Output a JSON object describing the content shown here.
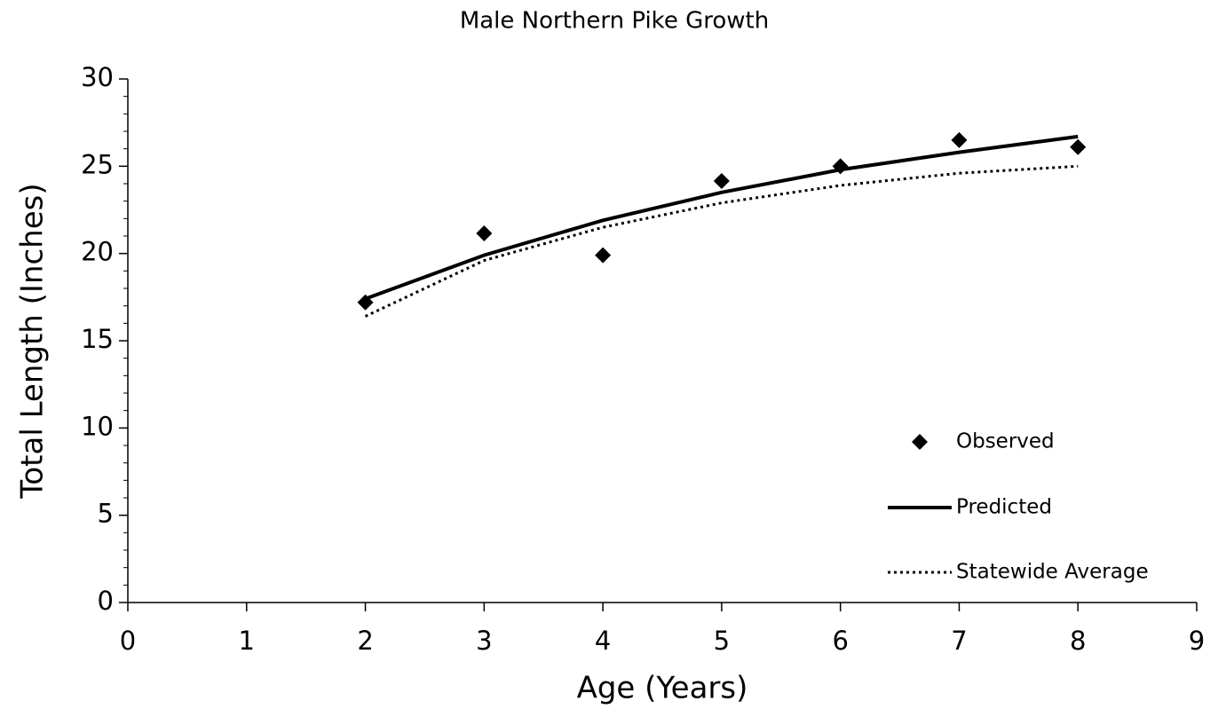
{
  "chart_data": {
    "type": "line",
    "title": "Male Northern Pike Growth",
    "x_label": "Age (Years)",
    "y_label": "Total Length (Inches)",
    "x": [
      2,
      3,
      4,
      5,
      6,
      7,
      8
    ],
    "series": [
      {
        "name": "Observed",
        "style": "marker",
        "color": "#000000",
        "values": [
          17.2,
          21.15,
          19.9,
          24.15,
          25.0,
          26.5,
          26.1
        ]
      },
      {
        "name": "Predicted",
        "style": "solid",
        "color": "#000000",
        "values": [
          17.4,
          19.9,
          21.9,
          23.5,
          24.8,
          25.8,
          26.7
        ]
      },
      {
        "name": "Statewide Average",
        "style": "dotted",
        "color": "#000000",
        "values": [
          16.4,
          19.6,
          21.5,
          22.9,
          23.9,
          24.6,
          25.0
        ]
      }
    ],
    "xlim": [
      0,
      9
    ],
    "xticks": [
      0,
      1,
      2,
      3,
      4,
      5,
      6,
      7,
      8,
      9
    ],
    "ylim": [
      0,
      30
    ],
    "yticks": [
      0,
      5,
      10,
      15,
      20,
      25,
      30
    ],
    "y_minor_ticks": [
      1,
      2,
      3,
      4,
      6,
      7,
      8,
      9,
      11,
      12,
      13,
      14,
      16,
      17,
      18,
      19,
      21,
      22,
      23,
      24,
      26,
      27,
      28,
      29
    ],
    "grid": false,
    "legend": "lower right"
  }
}
